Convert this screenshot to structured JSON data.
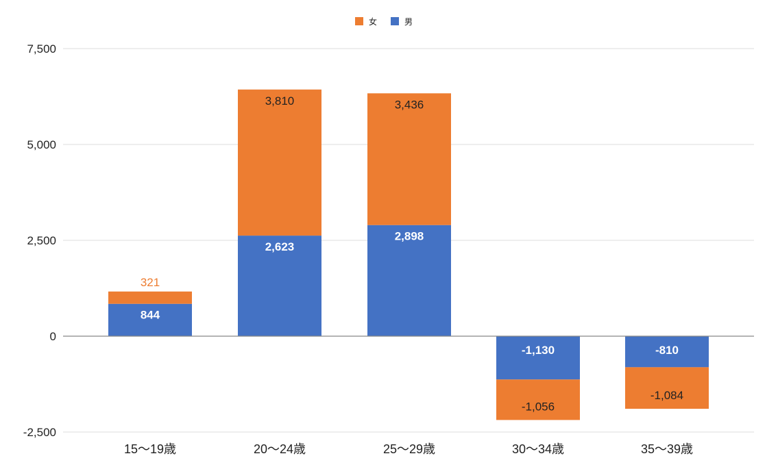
{
  "chart_data": {
    "type": "bar",
    "stacked": true,
    "categories": [
      "15〜19歳",
      "20〜24歳",
      "25〜29歳",
      "30〜34歳",
      "35〜39歳"
    ],
    "series": [
      {
        "name": "男",
        "color": "#4472c4",
        "values": [
          844,
          2623,
          2898,
          -1130,
          -810
        ],
        "labels": [
          "844",
          "2,623",
          "2,898",
          "-1,130",
          "-810"
        ]
      },
      {
        "name": "女",
        "color": "#ed7d31",
        "values": [
          321,
          3810,
          3436,
          -1056,
          -1084
        ],
        "labels": [
          "321",
          "3,810",
          "3,436",
          "-1,056",
          "-1,084"
        ]
      }
    ],
    "legend_order": [
      "女",
      "男"
    ],
    "legend_position": "top",
    "ylim": [
      -2500,
      7500
    ],
    "yticks": [
      -2500,
      0,
      2500,
      5000,
      7500
    ],
    "ytick_labels": [
      "-2,500",
      "0",
      "2,500",
      "5,000",
      "7,500"
    ],
    "grid": true,
    "title": "",
    "xlabel": "",
    "ylabel": ""
  }
}
